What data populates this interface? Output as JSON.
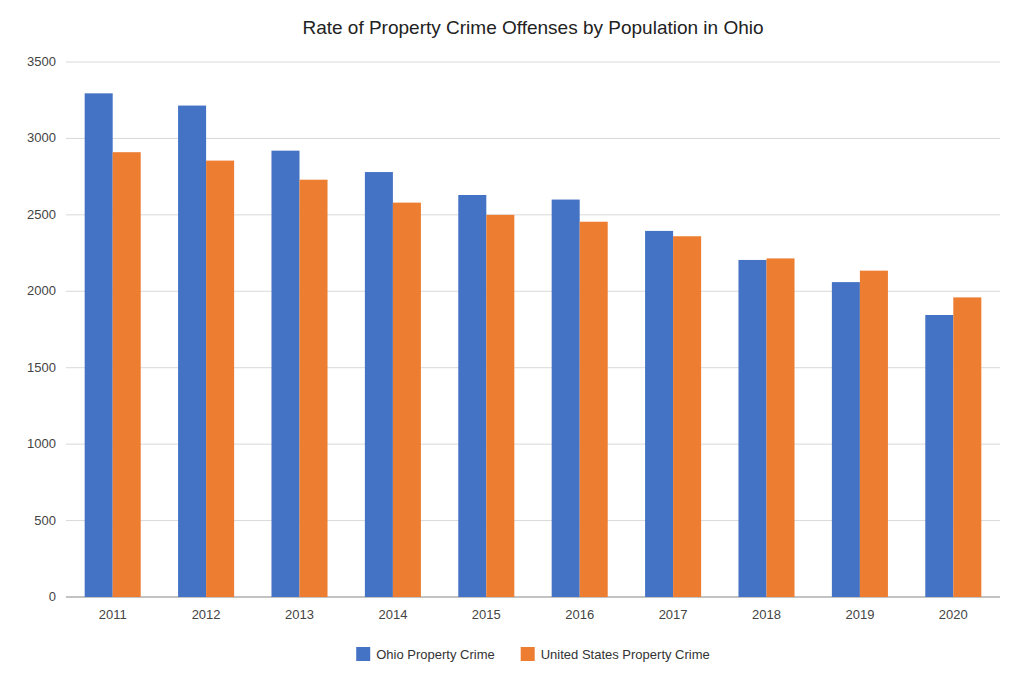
{
  "chart_data": {
    "type": "bar",
    "title": "Rate of Property Crime Offenses by Population in Ohio",
    "categories": [
      "2011",
      "2012",
      "2013",
      "2014",
      "2015",
      "2016",
      "2017",
      "2018",
      "2019",
      "2020"
    ],
    "series": [
      {
        "name": "Ohio Property Crime",
        "color": "#4472C4",
        "values": [
          3295,
          3215,
          2920,
          2780,
          2630,
          2600,
          2395,
          2205,
          2060,
          1845
        ]
      },
      {
        "name": "United States Property Crime",
        "color": "#ED7D31",
        "values": [
          2910,
          2855,
          2730,
          2580,
          2500,
          2455,
          2360,
          2215,
          2135,
          1960
        ]
      }
    ],
    "ylim": [
      0,
      3500
    ],
    "yticks": [
      0,
      500,
      1000,
      1500,
      2000,
      2500,
      3000,
      3500
    ],
    "grid": true,
    "legend": "bottom"
  }
}
